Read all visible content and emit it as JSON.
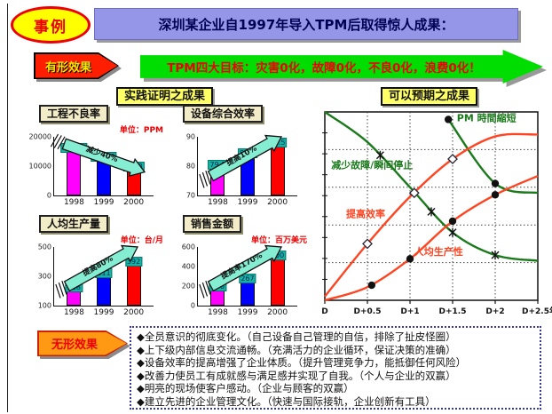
{
  "header": {
    "badge": "事例",
    "title": "深圳某企业自1997年导入TPM后取得惊人成果："
  },
  "tangible": {
    "label": "有形效果",
    "banner": "TPM四大目标：灾害0化，故障0化，不良0化，浪费0化！"
  },
  "sections": {
    "left_title": "实践证明之成果",
    "right_title": "可以预期之成果"
  },
  "colors": {
    "banner_green": "#00DD00",
    "title_lavender": "#9696E8",
    "tag_red": "#FF1F00",
    "arrow_teal": "#85EDD2",
    "green_curve": "#1B7A1B",
    "red_curve": "#FF4422"
  },
  "chart_data": [
    {
      "type": "bar",
      "title": "工程不良率",
      "unit": "单位：PPM",
      "arrow": {
        "text": "减少40%",
        "direction": "down"
      },
      "categories": [
        "1998",
        "1999",
        "2000"
      ],
      "values": [
        15673,
        12589,
        9438
      ],
      "bar_colors": [
        "#FF00FF",
        "#0000FF",
        "#FF0000"
      ],
      "ylim": [
        0,
        20000
      ],
      "yticks": [
        0,
        10000,
        20000
      ]
    },
    {
      "type": "bar",
      "title": "设备综合效率",
      "unit": "",
      "arrow": {
        "text": "提高10%",
        "direction": "up"
      },
      "categories": [
        "1998",
        "1999",
        "2000"
      ],
      "values": [
        79.9,
        83.8,
        87.5
      ],
      "bar_colors": [
        "#FF00FF",
        "#0000FF",
        "#FF0000"
      ],
      "ylim": [
        70,
        90
      ],
      "yticks": [
        70,
        80,
        90
      ]
    },
    {
      "type": "bar",
      "title": "人均生产量",
      "unit": "单位：台/月",
      "arrow": {
        "text": "提高80%",
        "direction": "up"
      },
      "categories": [
        "1998",
        "1999",
        "2000"
      ],
      "values": [
        218,
        311,
        392
      ],
      "bar_colors": [
        "#FF00FF",
        "#0000FF",
        "#FF0000"
      ],
      "ylim": [
        100,
        500
      ],
      "yticks": [
        100,
        300,
        500
      ]
    },
    {
      "type": "bar",
      "title": "销售金额",
      "unit": "单位：百万美元",
      "arrow": {
        "text": "提高率170%",
        "direction": "up"
      },
      "categories": [
        "1998",
        "1999",
        "2000"
      ],
      "values": [
        186,
        267,
        500
      ],
      "bar_colors": [
        "#FF00FF",
        "#0000FF",
        "#FF0000"
      ],
      "ylim": [
        0,
        600
      ],
      "yticks": [
        0,
        200,
        400,
        600
      ]
    },
    {
      "type": "line",
      "title": "可以预期之成果",
      "x_ticks": [
        "D",
        "D+0.5",
        "D+1",
        "D+1.5",
        "D+2",
        "D+2.5年"
      ],
      "x_range": [
        0,
        2.5
      ],
      "y_range": [
        0,
        1
      ],
      "grid_y": [
        0.2,
        0.4,
        0.6,
        0.8
      ],
      "series": [
        {
          "name": "减少故障/瞬间停止",
          "color": "#1B7A1B",
          "marker": "asterisk",
          "label_pos": [
            0.03,
            0.3
          ],
          "points": [
            [
              0,
              1.0
            ],
            [
              0.5,
              0.84
            ],
            [
              1.0,
              0.6
            ],
            [
              1.5,
              0.36
            ],
            [
              2.0,
              0.24
            ],
            [
              2.5,
              0.21
            ]
          ],
          "markers": [
            [
              0.65,
              0.77
            ],
            [
              1.25,
              0.47
            ],
            [
              1.5,
              0.36
            ],
            [
              2.0,
              0.24
            ]
          ]
        },
        {
          "name": "PM 時間縮短",
          "color": "#1B7A1B",
          "marker": "circle",
          "label_pos": [
            0.62,
            0.05
          ],
          "points": [
            [
              1.45,
              0.96
            ],
            [
              2.0,
              0.62
            ],
            [
              2.5,
              0.57
            ]
          ],
          "markers": [
            [
              1.45,
              0.96
            ],
            [
              2.0,
              0.62
            ]
          ]
        },
        {
          "name": "提高效率",
          "color": "#FF4422",
          "marker": "diamond",
          "label_pos": [
            0.1,
            0.56
          ],
          "points": [
            [
              0,
              0.02
            ],
            [
              0.5,
              0.3
            ],
            [
              1.0,
              0.55
            ],
            [
              1.5,
              0.75
            ],
            [
              2.0,
              0.87
            ],
            [
              2.5,
              0.88
            ]
          ],
          "markers": [
            [
              0.5,
              0.3
            ],
            [
              1.05,
              0.57
            ],
            [
              1.5,
              0.75
            ]
          ]
        },
        {
          "name": "人均生产性",
          "color": "#FF4422",
          "marker": "circle",
          "label_pos": [
            0.42,
            0.76
          ],
          "points": [
            [
              0,
              0.0
            ],
            [
              0.5,
              0.07
            ],
            [
              1.0,
              0.22
            ],
            [
              1.5,
              0.42
            ],
            [
              2.0,
              0.56
            ],
            [
              2.5,
              0.66
            ]
          ],
          "markers": [
            [
              0.55,
              0.08
            ],
            [
              1.0,
              0.22
            ],
            [
              1.5,
              0.42
            ],
            [
              2.0,
              0.56
            ]
          ]
        }
      ]
    }
  ],
  "intangible": {
    "label": "无形效果",
    "bullets": [
      "◆全员意识的彻底变化。（自己设备自己管理的自信，排除了扯皮怪圈）",
      "◆上下级内部信息交流通畅。（充满活力的企业循环，保证决策的准确）",
      "◆设备效率的提高增强了企业体质。（提升管理竞争力，能抵御任何风险）",
      "◆改善力使员工有成就感与满足感并实现了自我。（个人与企业的双赢）",
      "◆明亮的现场使客户感动。（企业与顾客的双赢）",
      "◆建立先进的企业管理文化。（快速与国际接轨，企业创新有工具）"
    ]
  }
}
